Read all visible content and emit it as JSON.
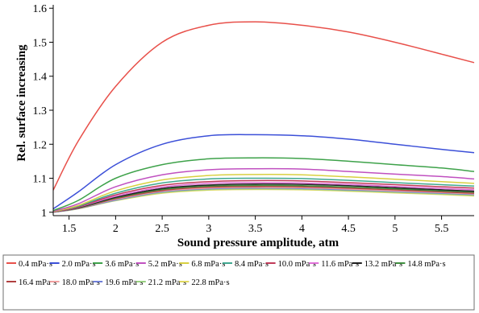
{
  "chart_data": {
    "type": "line",
    "title": "",
    "xlabel": "Sound pressure amplitude, atm",
    "ylabel": "Rel. surface increasing",
    "xlim": [
      1.33,
      5.85
    ],
    "ylim": [
      0.99,
      1.61
    ],
    "xticks": [
      1.5,
      2,
      2.5,
      3,
      3.5,
      4,
      4.5,
      5,
      5.5
    ],
    "xtick_labels": [
      "1.5",
      "2",
      "2.5",
      "3",
      "3.5",
      "4",
      "4.5",
      "5",
      "5.5"
    ],
    "yticks": [
      1,
      1.1,
      1.2,
      1.3,
      1.4,
      1.5,
      1.6
    ],
    "ytick_labels": [
      "1",
      "1.1",
      "1.2",
      "1.3",
      "1.4",
      "1.5",
      "1.6"
    ],
    "grid": false,
    "legend_position": "bottom",
    "x": [
      1.33,
      1.6,
      2.0,
      2.5,
      3.0,
      3.5,
      4.0,
      4.5,
      5.0,
      5.5,
      5.85
    ],
    "series": [
      {
        "name": "0.4 mPa·s",
        "color": "#e8504a",
        "values": [
          1.065,
          1.21,
          1.37,
          1.5,
          1.55,
          1.56,
          1.55,
          1.53,
          1.5,
          1.465,
          1.44
        ]
      },
      {
        "name": "2.0 mPa·s",
        "color": "#3b4fd8",
        "values": [
          1.01,
          1.06,
          1.14,
          1.2,
          1.225,
          1.228,
          1.225,
          1.215,
          1.2,
          1.185,
          1.175
        ]
      },
      {
        "name": "3.6 mPa·s",
        "color": "#3ea24a",
        "values": [
          1.005,
          1.035,
          1.1,
          1.14,
          1.157,
          1.16,
          1.158,
          1.15,
          1.14,
          1.13,
          1.12
        ]
      },
      {
        "name": "5.2 mPa·s",
        "color": "#c050c0",
        "values": [
          1.003,
          1.025,
          1.075,
          1.11,
          1.125,
          1.128,
          1.127,
          1.12,
          1.112,
          1.105,
          1.098
        ]
      },
      {
        "name": "6.8 mPa·s",
        "color": "#d8d040",
        "values": [
          1.002,
          1.02,
          1.063,
          1.095,
          1.108,
          1.111,
          1.11,
          1.104,
          1.097,
          1.09,
          1.085
        ]
      },
      {
        "name": "8.4 mPa·s",
        "color": "#40a890",
        "values": [
          1.002,
          1.018,
          1.056,
          1.086,
          1.098,
          1.1,
          1.099,
          1.094,
          1.087,
          1.081,
          1.077
        ]
      },
      {
        "name": "10.0 mPa·s",
        "color": "#c03a58",
        "values": [
          1.001,
          1.016,
          1.051,
          1.079,
          1.09,
          1.093,
          1.092,
          1.087,
          1.081,
          1.075,
          1.071
        ]
      },
      {
        "name": "11.6 mPa·s",
        "color": "#e070d8",
        "values": [
          1.001,
          1.015,
          1.047,
          1.074,
          1.085,
          1.087,
          1.086,
          1.082,
          1.076,
          1.07,
          1.066
        ]
      },
      {
        "name": "13.2 mPa·s",
        "color": "#202020",
        "values": [
          1.001,
          1.014,
          1.044,
          1.07,
          1.08,
          1.083,
          1.082,
          1.078,
          1.072,
          1.066,
          1.062
        ]
      },
      {
        "name": "14.8 mPa·s",
        "color": "#409040",
        "values": [
          1.001,
          1.013,
          1.042,
          1.067,
          1.077,
          1.079,
          1.078,
          1.074,
          1.069,
          1.063,
          1.059
        ]
      },
      {
        "name": "16.4 mPa·s",
        "color": "#b04040",
        "values": [
          1.001,
          1.012,
          1.04,
          1.064,
          1.074,
          1.076,
          1.075,
          1.071,
          1.066,
          1.06,
          1.056
        ]
      },
      {
        "name": "18.0 mPa·s",
        "color": "#f0a0a0",
        "values": [
          1.001,
          1.012,
          1.038,
          1.062,
          1.071,
          1.073,
          1.072,
          1.068,
          1.063,
          1.058,
          1.054
        ]
      },
      {
        "name": "19.6 mPa·s",
        "color": "#7080d8",
        "values": [
          1.0,
          1.011,
          1.036,
          1.06,
          1.069,
          1.071,
          1.07,
          1.066,
          1.061,
          1.056,
          1.052
        ]
      },
      {
        "name": "21.2 mPa·s",
        "color": "#98d080",
        "values": [
          1.0,
          1.011,
          1.035,
          1.058,
          1.067,
          1.069,
          1.068,
          1.064,
          1.059,
          1.054,
          1.05
        ]
      },
      {
        "name": "22.8 mPa·s",
        "color": "#e0d860",
        "values": [
          1.0,
          1.01,
          1.034,
          1.056,
          1.065,
          1.067,
          1.066,
          1.062,
          1.057,
          1.052,
          1.048
        ]
      }
    ]
  }
}
